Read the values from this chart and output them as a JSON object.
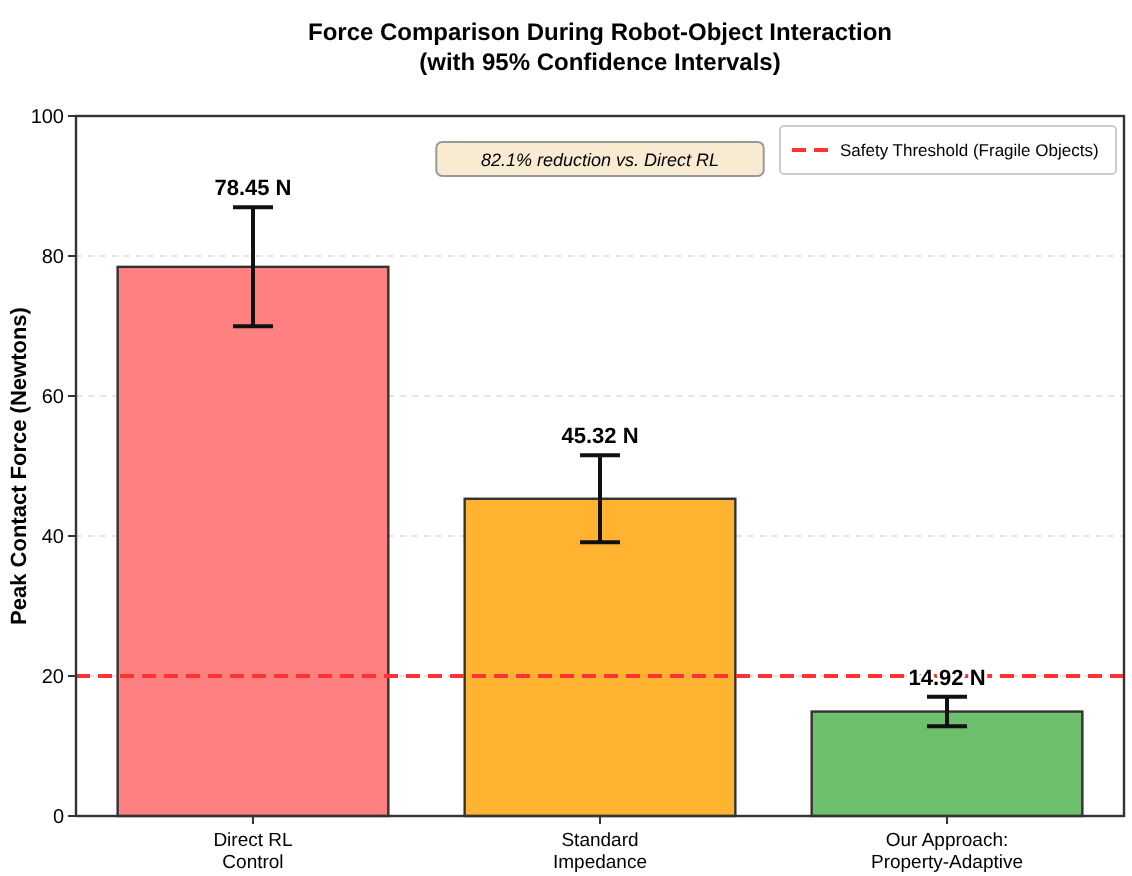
{
  "chart_data": {
    "type": "bar",
    "title": "Force Comparison During Robot-Object Interaction\n(with 95% Confidence Intervals)",
    "ylabel": "Peak Contact Force (Newtons)",
    "categories": [
      "Direct RL\nControl",
      "Standard\nImpedance",
      "Our Approach:\nProperty-Adaptive"
    ],
    "values": [
      78.45,
      45.32,
      14.92
    ],
    "colors": [
      "#ff8080",
      "#ffb330",
      "#6dbf6d"
    ],
    "errors": [
      8.5,
      6.2,
      2.1
    ],
    "value_labels": [
      "78.45 N",
      "45.32 N",
      "14.92 N"
    ],
    "ylim": [
      0,
      100
    ],
    "yticks": [
      0,
      20,
      40,
      60,
      80,
      100
    ],
    "grid": "y",
    "ref_lines": [
      {
        "axis": "y",
        "value": 20,
        "label": "Safety Threshold (Fragile Objects)",
        "color": "#ff3333",
        "line_style": "dashed"
      }
    ],
    "legend": "top right",
    "annotations": [
      "82.1% reduction vs. Direct RL"
    ]
  }
}
